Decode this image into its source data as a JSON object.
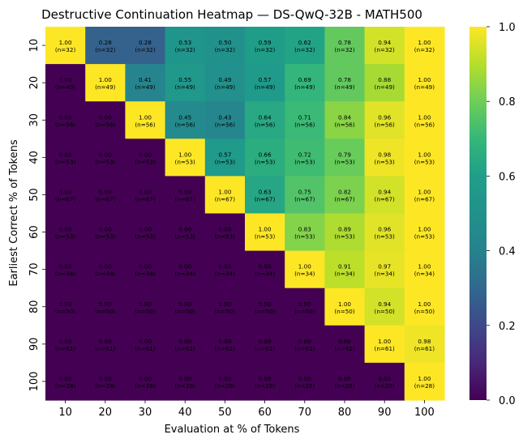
{
  "chart_data": {
    "type": "heatmap",
    "title": "Destructive Continuation Heatmap — DS-QwQ-32B - MATH500",
    "xlabel": "Evaluation at % of Tokens",
    "ylabel": "Earliest Correct % of Tokens",
    "x_categories": [
      "10",
      "20",
      "30",
      "40",
      "50",
      "60",
      "70",
      "80",
      "90",
      "100"
    ],
    "y_categories": [
      "10",
      "20",
      "30",
      "40",
      "50",
      "60",
      "70",
      "80",
      "90",
      "100"
    ],
    "values": [
      [
        1.0,
        0.28,
        0.28,
        0.53,
        0.5,
        0.59,
        0.62,
        0.78,
        0.94,
        1.0
      ],
      [
        0.0,
        1.0,
        0.41,
        0.55,
        0.49,
        0.57,
        0.69,
        0.78,
        0.88,
        1.0
      ],
      [
        0.0,
        0.0,
        1.0,
        0.45,
        0.43,
        0.64,
        0.71,
        0.84,
        0.96,
        1.0
      ],
      [
        0.0,
        0.0,
        0.0,
        1.0,
        0.57,
        0.66,
        0.72,
        0.79,
        0.98,
        1.0
      ],
      [
        0.0,
        0.0,
        0.0,
        0.0,
        1.0,
        0.63,
        0.75,
        0.82,
        0.94,
        1.0
      ],
      [
        0.0,
        0.0,
        0.0,
        0.0,
        0.0,
        1.0,
        0.83,
        0.89,
        0.96,
        1.0
      ],
      [
        0.0,
        0.0,
        0.0,
        0.0,
        0.0,
        0.0,
        1.0,
        0.91,
        0.97,
        1.0
      ],
      [
        0.0,
        0.0,
        0.0,
        0.0,
        0.0,
        0.0,
        0.0,
        1.0,
        0.94,
        1.0
      ],
      [
        0.0,
        0.0,
        0.0,
        0.0,
        0.0,
        0.0,
        0.0,
        0.0,
        1.0,
        0.98
      ],
      [
        0.0,
        0.0,
        0.0,
        0.0,
        0.0,
        0.0,
        0.0,
        0.0,
        0.0,
        1.0
      ]
    ],
    "row_counts": [
      32,
      49,
      56,
      53,
      67,
      53,
      34,
      50,
      61,
      28
    ],
    "colorbar": {
      "colormap": "viridis",
      "range": [
        0.0,
        1.0
      ],
      "ticks": [
        "0.0",
        "0.2",
        "0.4",
        "0.6",
        "0.8",
        "1.0"
      ]
    }
  }
}
